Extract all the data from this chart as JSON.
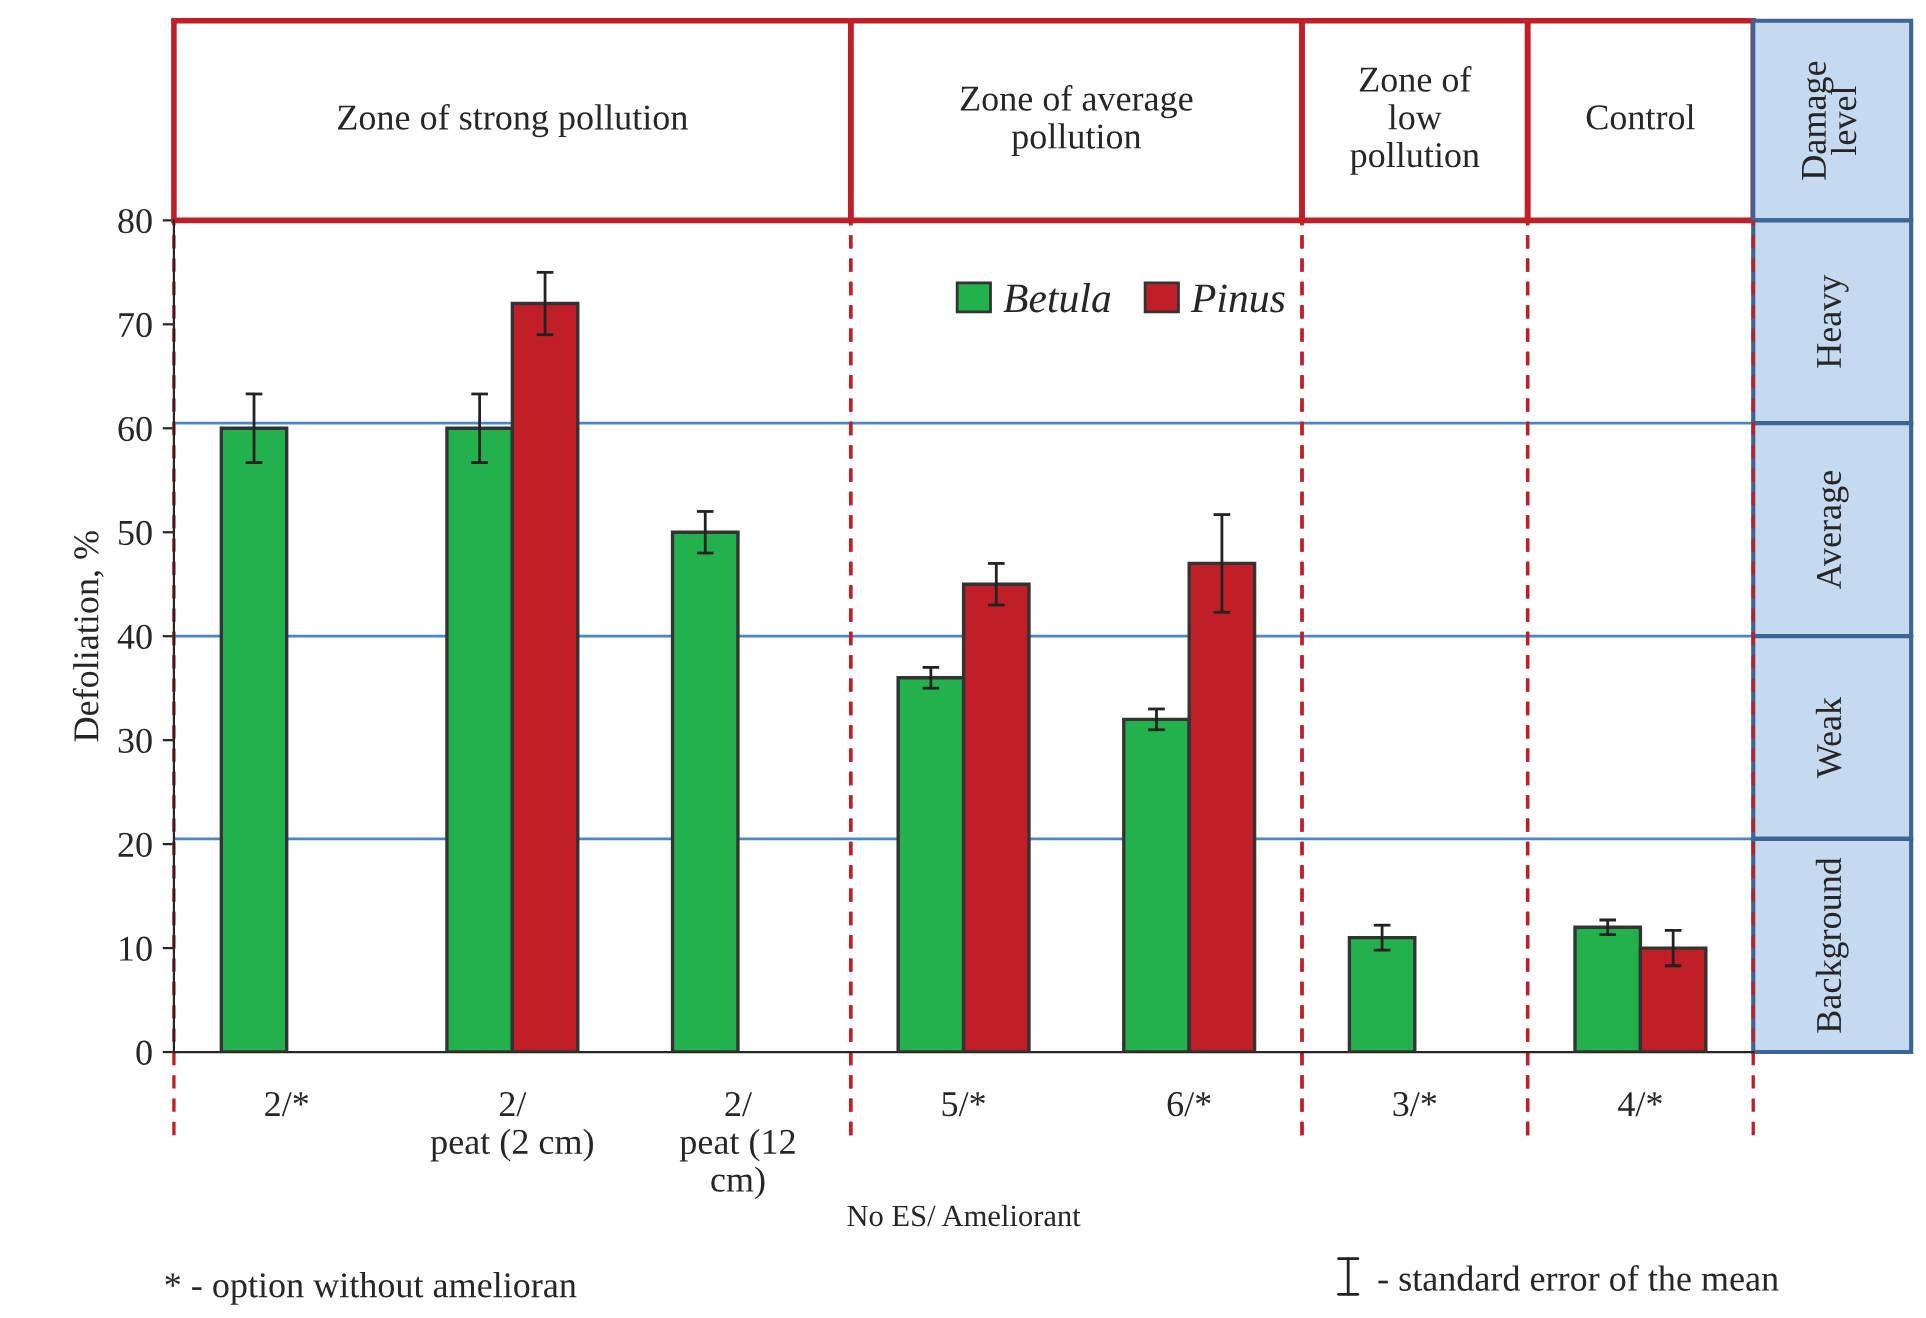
{
  "chart_data": {
    "type": "bar",
    "categories": [
      "2/*",
      "2/\npeat (2 cm)",
      "2/\npeat (12\ncm)",
      "5/*",
      "6/*",
      "3/*",
      "4/*"
    ],
    "series": [
      {
        "name": "Betula",
        "color": "#22b14c",
        "values": [
          60,
          60,
          50,
          36,
          32,
          11,
          12
        ],
        "errors": [
          3.3,
          3.3,
          2,
          1,
          1,
          1.2,
          0.7
        ]
      },
      {
        "name": "Pinus",
        "color": "#c01f27",
        "values": [
          null,
          72,
          null,
          45,
          47,
          null,
          10
        ],
        "errors": [
          null,
          3,
          null,
          2,
          4.7,
          null,
          1.7
        ]
      }
    ],
    "xlabel": "No ES/ Ameliorant",
    "ylabel": "Defoliation, %",
    "ylim": [
      0,
      80
    ],
    "yticks": [
      0,
      10,
      20,
      30,
      40,
      50,
      60,
      70,
      80
    ],
    "ref_lines": [
      {
        "axis": "y",
        "value": 60.5,
        "color": "#4a86c8"
      },
      {
        "axis": "y",
        "value": 40,
        "color": "#4a86c8"
      },
      {
        "axis": "y",
        "value": 20.5,
        "color": "#4a86c8"
      }
    ],
    "annotations": [
      "Zone of strong pollution",
      "Zone of average\npollution",
      "Zone of\nlow\npollution",
      "Control",
      "Damage\nlevel",
      "Heavy",
      "Average",
      "Weak",
      "Background",
      "* - option without amelioran",
      "- standard error of the mean"
    ],
    "legend": "top",
    "grid": false
  }
}
